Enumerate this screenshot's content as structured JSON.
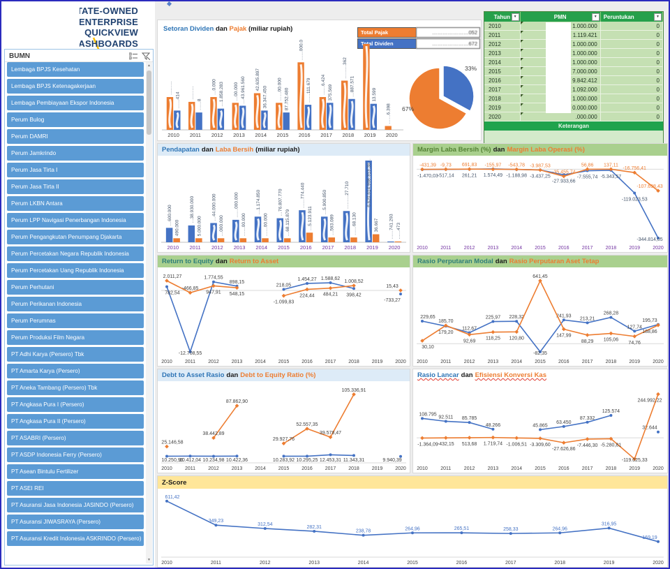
{
  "header": {
    "title_lines": [
      "STATE-OWNED",
      "ENTERPRISE",
      "QUICKVIEW",
      "DASHBOARDS"
    ]
  },
  "sidebar": {
    "title": "BUMN",
    "items": [
      "Lembaga BPJS Kesehatan",
      "Lembaga BPJS Ketenagakerjaan",
      "Lembaga Pembiayaan Ekspor Indonesia",
      "Perum Bulog",
      "Perum DAMRI",
      "Perum Jamkrindo",
      "Perum Jasa Tirta I",
      "Perum Jasa Tirta II",
      "Perum LKBN Antara",
      "Perum LPP Navigasi Penerbangan Indonesia",
      "Perum Pengangkutan Penumpang Djakarta",
      "Perum Percetakan Negara Republik Indonesia",
      "Perum Percetakan Uang Republik Indonesia",
      "Perum Perhutani",
      "Perum Perikanan Indonesia",
      "Perum Perumnas",
      "Perum Produksi Film Negara",
      "PT Adhi Karya  (Persero)  Tbk",
      "PT Amarta Karya  (Persero)",
      "PT Aneka Tambang  (Persero)  Tbk",
      "PT Angkasa Pura I  (Persero)",
      "PT Angkasa Pura II  (Persero)",
      "PT ASABRI  (Persero)",
      "PT ASDP Indonesia Ferry  (Persero)",
      "PT Asean Bintulu Fertilizer",
      "PT ASEI REI",
      "PT Asuransi Jasa Indonesia JASINDO  (Persero)",
      "PT Asuransi JIWASRAYA  (Persero)",
      "PT Asuransi Kredit Indonesia ASKRINDO  (Persero)"
    ]
  },
  "pmn_table": {
    "headers": [
      "Tahun",
      "PMN",
      "Peruntukan"
    ],
    "rows": [
      {
        "tahun": "2010",
        "pmn": "1.000.000",
        "peruntukan": "0"
      },
      {
        "tahun": "2011",
        "pmn": "1.119.421",
        "peruntukan": "0"
      },
      {
        "tahun": "2012",
        "pmn": "1.000.000",
        "peruntukan": "0"
      },
      {
        "tahun": "2013",
        "pmn": "1.000.000",
        "peruntukan": "0"
      },
      {
        "tahun": "2014",
        "pmn": "1.000.000",
        "peruntukan": "0"
      },
      {
        "tahun": "2015",
        "pmn": "7.000.000",
        "peruntukan": "0"
      },
      {
        "tahun": "2016",
        "pmn": "9.842.412",
        "peruntukan": "0"
      },
      {
        "tahun": "2017",
        "pmn": "1.092.000",
        "peruntukan": "0"
      },
      {
        "tahun": "2018",
        "pmn": "1.000.000",
        "peruntukan": "0"
      },
      {
        "tahun": "2019",
        "pmn": "0.000.000",
        "peruntukan": "0"
      },
      {
        "tahun": "2020",
        "pmn": ".000.000",
        "peruntukan": "0"
      }
    ],
    "footer": "Keterangan",
    "note": "left part of PMN values covered by white redaction in source"
  },
  "panels": {
    "setoran": {
      "t1": "Setoran Dividen",
      "dan": "dan",
      "t2": "Pajak",
      "suffix": "(miliar rupiah)",
      "totals": [
        {
          "label": "Total Pajak",
          "value": "…………………052",
          "color": "#ED7D31"
        },
        {
          "label": "Total Dividen",
          "value": "…………………672",
          "color": "#4472C4"
        }
      ]
    },
    "pendapatan": {
      "t1": "Pendapatan",
      "dan": "dan",
      "t2": "Laba Bersih",
      "suffix": "(miliar rupiah)"
    },
    "margin": {
      "t1": "Margin Laba Bersih (%)",
      "dan": "dan",
      "t2": "Margin Laba Operasi (%)"
    },
    "rte": {
      "t1": "Return to Equity",
      "dan": "dan",
      "t2": "Return to Asset"
    },
    "rasio": {
      "t1": "Rasio Perputaran Modal",
      "dan": "dan",
      "t2": "Rasio Perputaran Aset Tetap"
    },
    "debt": {
      "t1": "Debt to Asset Rasio",
      "dan": "dan",
      "t2": "Debt to Equity Ratio (%)"
    },
    "lancar": {
      "t1": "Rasio Lancar",
      "dan": "dan",
      "t2": "Efisiensi Konversi Kas"
    },
    "zscore": {
      "t1": "Z-Score"
    }
  },
  "chart_data": [
    {
      "id": "setoran_dividen_pajak",
      "type": "bar",
      "categories": [
        "2010",
        "2011",
        "2012",
        "2013",
        "2014",
        "2015",
        "2016",
        "2017",
        "2018",
        "2019",
        "2020"
      ],
      "series": [
        {
          "name": "Pajak",
          "color": "#ED7D31",
          "heights": [
            34,
            29,
            34,
            28,
            38,
            28,
            70,
            34,
            51,
            89,
            4
          ],
          "labels": [
            "………",
            "………",
            "…0.000",
            "…00.000",
            "42.635.897",
            "……00.000",
            "……000.000",
            "……6.424",
            "………362",
            "",
            "……6.398"
          ]
        },
        {
          "name": "Dividen",
          "color": "#4472C4",
          "heights": [
            20,
            18,
            22,
            25,
            20,
            18,
            26,
            28,
            32,
            27,
            0
          ],
          "labels": [
            "……414",
            "……8",
            "…1.858.283",
            "…43.961.560",
            "36.347.450",
            "87.752.480",
            "……111.679",
            "375.569",
            "…887.571",
            "13.599",
            ""
          ]
        }
      ],
      "note": "heights are relative estimates (axis unlabeled); data labels partially redacted in source"
    },
    {
      "id": "setoran_pie",
      "type": "pie",
      "slices": [
        {
          "label": "67%",
          "value": 67,
          "color": "#ED7D31"
        },
        {
          "label": "33%",
          "value": 33,
          "color": "#4472C4"
        }
      ]
    },
    {
      "id": "pendapatan_laba_bersih",
      "type": "bar",
      "categories": [
        "2010",
        "2011",
        "2012",
        "2013",
        "2014",
        "2015",
        "2016",
        "2017",
        "2018",
        "2019",
        "2020"
      ],
      "series": [
        {
          "name": "Pendapatan",
          "color": "#4472C4",
          "heights": [
            18,
            21,
            24,
            28,
            32,
            30,
            40,
            32,
            39,
            102,
            1
          ],
          "labels": [
            "…600.000",
            "…38.930.000",
            "…44.000.000",
            "……000.000",
            "…1.174.850",
            "…76.807.770",
            "……774.440",
            "…5.900.850",
            "………27.710",
            "6.620.614.908.313.38…",
            "……741.293"
          ]
        },
        {
          "name": "Laba Bersih",
          "color": "#ED7D31",
          "heights": [
            5,
            5,
            5,
            5,
            5,
            5,
            12,
            6,
            6,
            10,
            1
          ],
          "labels": [
            "490.000",
            "5.000.000",
            "…000.000",
            "……00.000",
            "……00.000",
            "…68.115.879",
            "…5.123.911",
            "…593.089",
            "……68.130",
            "36.667",
            "……473"
          ]
        }
      ],
      "note": "heights are relative estimates; labels partially redacted in source"
    },
    {
      "id": "margin_laba",
      "type": "line",
      "categories": [
        "2010",
        "2011",
        "2012",
        "2013",
        "2014",
        "2015",
        "2016",
        "2017",
        "2018",
        "2019",
        "2020"
      ],
      "series": [
        {
          "name": "Margin Laba Bersih (%)",
          "color": "#4472C4",
          "values": [
            -1470.03,
            -517.14,
            261.21,
            1574.49,
            -1188.98,
            -3437.25,
            -27933.66,
            -7555.74,
            -5343.57,
            -119023.53,
            -344814.05
          ],
          "labels": [
            "-1.470,03",
            "-517,14",
            "261,21",
            "1.574,49",
            "-1.188,98",
            "-3.437,25",
            "-27.933,66",
            "-7.555,74",
            "-5.343,57",
            "-119.023,53",
            "-344.814,05"
          ]
        },
        {
          "name": "Margin Laba Operasi (%)",
          "color": "#ED7D31",
          "values": [
            -431.39,
            -9.73,
            691.83,
            -155.97,
            -543.78,
            -3987.53,
            -35455.74,
            56.86,
            137.11,
            -16756.41,
            -107698.43
          ],
          "labels": [
            "-431,39",
            "-9,73",
            "691,83",
            "-155,97",
            "-543,78",
            "-3.987,53",
            "-35.455,74",
            "56,86",
            "137,11",
            "-16.756,41",
            "-107.698,43"
          ]
        }
      ]
    },
    {
      "id": "return_equity_asset",
      "type": "line",
      "categories": [
        "2010",
        "2011",
        "2012",
        "2013",
        "2014",
        "2015",
        "2016",
        "2017",
        "2018",
        "2019",
        "2020"
      ],
      "series": [
        {
          "name": "Return to Equity",
          "color": "#4472C4",
          "values": [
            782.54,
            -12708.55,
            1774.55,
            898.15,
            null,
            218.05,
            1454.27,
            1588.62,
            398.42,
            null,
            -733.27
          ],
          "labels": [
            "782,54",
            "-12.708,55",
            "1.774,55",
            "898,15",
            null,
            "218,05",
            "1.454,27",
            "1.588,62",
            "398,42",
            null,
            "-733,27"
          ]
        },
        {
          "name": "Return to Asset",
          "color": "#ED7D31",
          "values": [
            2011.27,
            -466.85,
            947.91,
            548.15,
            null,
            -1099.83,
            224.44,
            484.21,
            1008.52,
            null,
            15.43
          ],
          "labels": [
            "2.011,27",
            "-466,85",
            "947,91",
            "548,15",
            null,
            "-1.099,83",
            "224,44",
            "484,21",
            "1.008,52",
            null,
            "15,43"
          ]
        }
      ]
    },
    {
      "id": "rasio_perputaran",
      "type": "line",
      "categories": [
        "2010",
        "2011",
        "2012",
        "2013",
        "2014",
        "2015",
        "2016",
        "2017",
        "2018",
        "2019",
        "2020"
      ],
      "series": [
        {
          "name": "Rasio Perputaran Modal",
          "color": "#4472C4",
          "values": [
            229.65,
            179.2,
            112.67,
            225.97,
            228.32,
            -82.35,
            241.93,
            213.21,
            268.28,
            127.74,
            195.73
          ],
          "labels": [
            "229,65",
            "179,20",
            "112,67",
            "225,97",
            "228,32",
            "-82,35",
            "241,93",
            "213,21",
            "268,28",
            "127,74",
            "195,73"
          ]
        },
        {
          "name": "Rasio Perputaran Aset Tetap",
          "color": "#ED7D31",
          "values": [
            30.1,
            185.7,
            92.69,
            118.25,
            120.8,
            641.45,
            147.99,
            88.29,
            105.06,
            74.76,
            188.86
          ],
          "labels": [
            "30,10",
            "185,70",
            "92,69",
            "118,25",
            "120,80",
            "641,45",
            "147,99",
            "88,29",
            "105,06",
            "74,76",
            "188,86"
          ]
        }
      ]
    },
    {
      "id": "debt_ratio",
      "type": "line",
      "categories": [
        "2010",
        "2011",
        "2012",
        "2013",
        "2014",
        "2015",
        "2016",
        "2017",
        "2018",
        "2019",
        "2020"
      ],
      "series": [
        {
          "name": "Debt to Asset Rasio",
          "color": "#4472C4",
          "values": [
            10250.96,
            10412.04,
            10234.98,
            10422.36,
            null,
            10283.92,
            10295.25,
            12453.31,
            11343.31,
            null,
            9940.39
          ],
          "labels": [
            "10.250,96",
            "10.412,04",
            "10.234,98",
            "10.422,36",
            null,
            "10.283,92",
            "10.295,25",
            "12.453,31",
            "11.343,31",
            null,
            "9.940,39"
          ]
        },
        {
          "name": "Debt to Equity Ratio (%)",
          "color": "#ED7D31",
          "values": [
            25146.58,
            null,
            38442.89,
            87862.9,
            null,
            29927.76,
            52557.35,
            39578.47,
            105336.91,
            null,
            null
          ],
          "labels": [
            "25.146,58",
            null,
            "38.442,89",
            "87.862,90",
            null,
            "29.927,76",
            "52.557,35",
            "39.578,47",
            "105.336,91",
            null,
            null
          ]
        }
      ]
    },
    {
      "id": "rasio_lancar_ekk",
      "type": "line",
      "categories": [
        "2010",
        "2011",
        "2012",
        "2013",
        "2014",
        "2015",
        "2016",
        "2017",
        "2018",
        "2019",
        "2020"
      ],
      "series": [
        {
          "name": "Rasio Lancar",
          "color": "#4472C4",
          "values": [
            108795,
            92511,
            85785,
            48266,
            null,
            45865,
            63450,
            87332,
            125574,
            null,
            32644
          ],
          "labels": [
            "108.795",
            "92.511",
            "85.785",
            "48.266",
            null,
            "45.865",
            "63.450",
            "87.332",
            "125.574",
            null,
            "32.644"
          ]
        },
        {
          "name": "Efisiensi Konversi Kas",
          "color": "#ED7D31",
          "values": [
            -1364.09,
            -432.15,
            513.68,
            1719.74,
            -1006.51,
            -3309.6,
            -27626.86,
            -7446.3,
            -5280.81,
            -119025.33,
            244992.22
          ],
          "labels": [
            "-1.364,09",
            "-432,15",
            "513,68",
            "1.719,74",
            "-1.006,51",
            "-3.309,60",
            "-27.626,86",
            "-7.446,30",
            "-5.280,81",
            "-119.025,33",
            "244.992,22"
          ]
        }
      ]
    },
    {
      "id": "zscore",
      "type": "line",
      "categories": [
        "2010",
        "2011",
        "2012",
        "2013",
        "2014",
        "2015",
        "2016",
        "2017",
        "2018",
        "2019",
        "2020"
      ],
      "series": [
        {
          "name": "Z-Score",
          "color": "#4472C4",
          "values": [
            611.42,
            349.23,
            312.54,
            282.31,
            238.78,
            264.96,
            265.51,
            258.33,
            264.96,
            316.95,
            169.19
          ],
          "labels": [
            "611,42",
            "349,23",
            "312,54",
            "282,31",
            "238,78",
            "264,96",
            "265,51",
            "258,33",
            "264,96",
            "316,95",
            "169,19"
          ]
        }
      ]
    }
  ]
}
